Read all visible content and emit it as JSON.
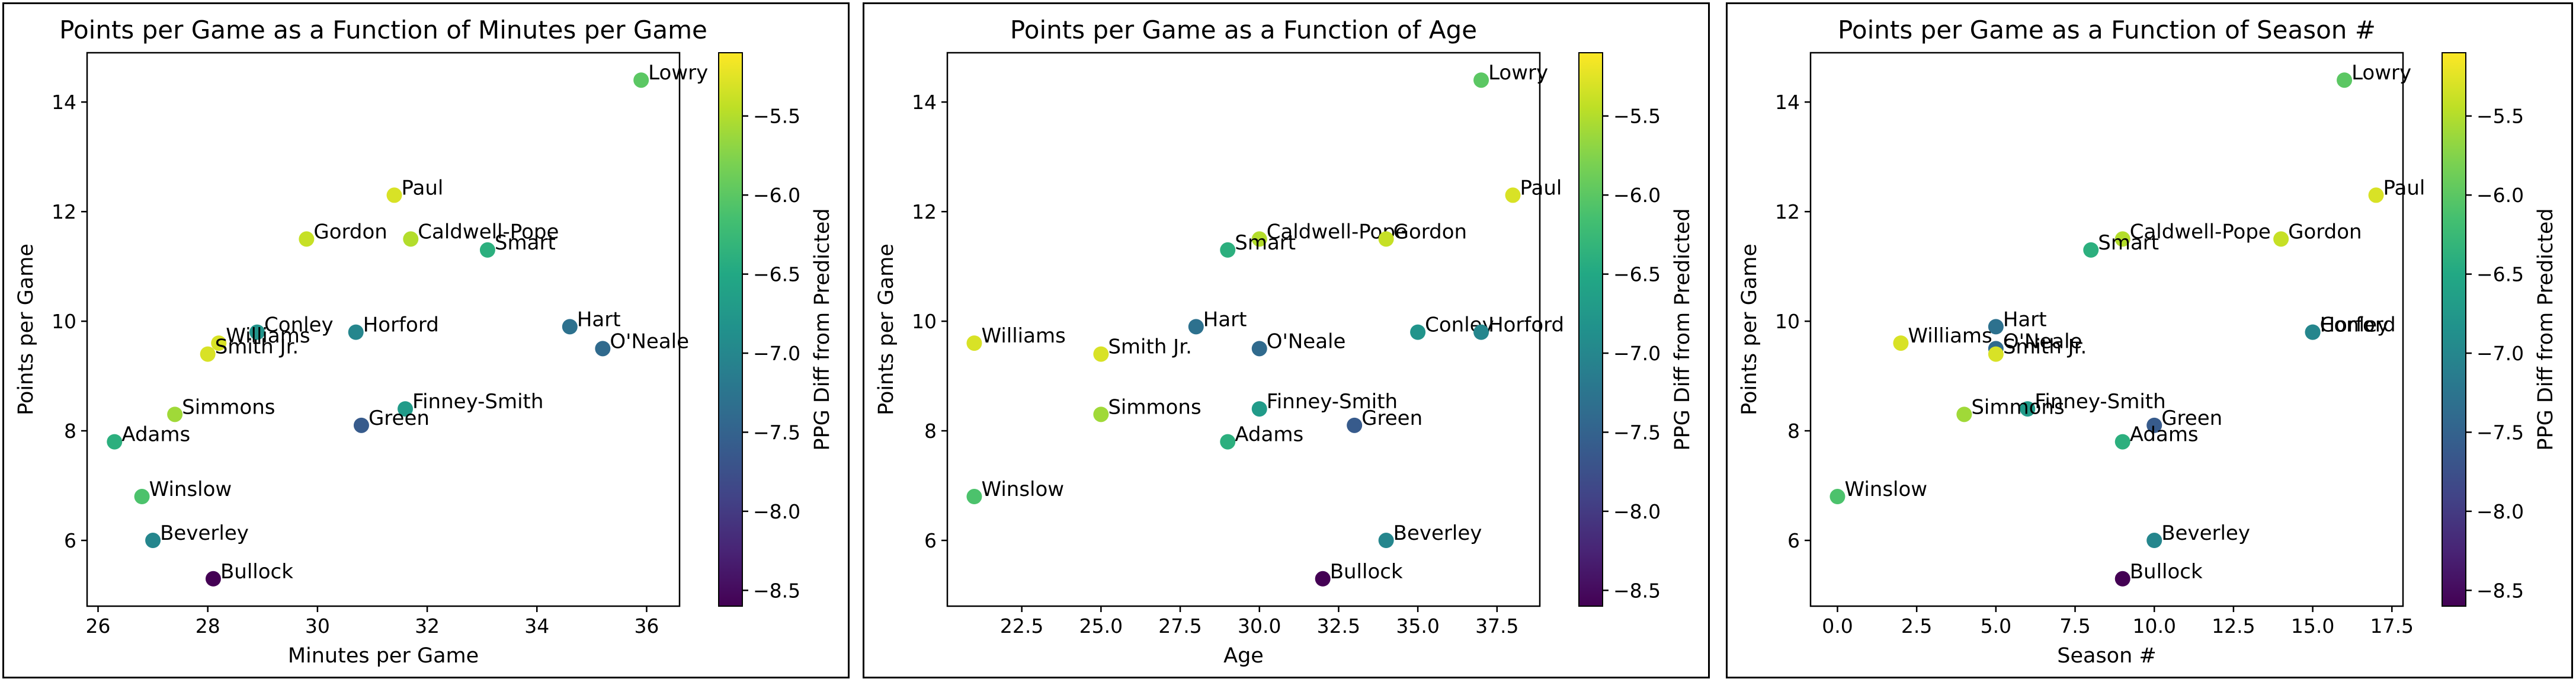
{
  "colormap": {
    "name": "viridis",
    "label": "PPG Diff from Predicted",
    "min": -8.6,
    "max": -5.1,
    "ticks": [
      -8.5,
      -8.0,
      -7.5,
      -7.0,
      -6.5,
      -6.0,
      -5.5
    ],
    "tick_labels": [
      "−8.5",
      "−8.0",
      "−7.5",
      "−7.0",
      "−6.5",
      "−6.0",
      "−5.5"
    ]
  },
  "chart_data": [
    {
      "type": "scatter",
      "title": "Points per Game as a Function of Minutes per Game",
      "xlabel": "Minutes per Game",
      "ylabel": "Points per Game",
      "xlim": [
        25.8,
        36.6
      ],
      "ylim": [
        4.8,
        14.9
      ],
      "xticks": [
        26,
        28,
        30,
        32,
        34,
        36
      ],
      "xtick_labels": [
        "26",
        "28",
        "30",
        "32",
        "34",
        "36"
      ],
      "yticks": [
        6,
        8,
        10,
        12,
        14
      ],
      "ytick_labels": [
        "6",
        "8",
        "10",
        "12",
        "14"
      ],
      "points": [
        {
          "label": "Lowry",
          "x": 35.9,
          "y": 14.4,
          "c": -6.0
        },
        {
          "label": "Paul",
          "x": 31.4,
          "y": 12.3,
          "c": -5.3
        },
        {
          "label": "Gordon",
          "x": 29.8,
          "y": 11.5,
          "c": -5.4
        },
        {
          "label": "Caldwell-Pope",
          "x": 31.7,
          "y": 11.5,
          "c": -5.5
        },
        {
          "label": "Smart",
          "x": 33.1,
          "y": 11.3,
          "c": -6.4
        },
        {
          "label": "Hart",
          "x": 34.6,
          "y": 9.9,
          "c": -7.3
        },
        {
          "label": "O'Neale",
          "x": 35.2,
          "y": 9.5,
          "c": -7.4
        },
        {
          "label": "Conley",
          "x": 28.9,
          "y": 9.8,
          "c": -6.8
        },
        {
          "label": "Horford",
          "x": 30.7,
          "y": 9.8,
          "c": -7.0
        },
        {
          "label": "Williams",
          "x": 28.2,
          "y": 9.6,
          "c": -5.3
        },
        {
          "label": "Smith Jr.",
          "x": 28.0,
          "y": 9.4,
          "c": -5.3
        },
        {
          "label": "Finney-Smith",
          "x": 31.6,
          "y": 8.4,
          "c": -6.7
        },
        {
          "label": "Simmons",
          "x": 27.4,
          "y": 8.3,
          "c": -5.6
        },
        {
          "label": "Green",
          "x": 30.8,
          "y": 8.1,
          "c": -7.6
        },
        {
          "label": "Adams",
          "x": 26.3,
          "y": 7.8,
          "c": -6.4
        },
        {
          "label": "Winslow",
          "x": 26.8,
          "y": 6.8,
          "c": -6.1
        },
        {
          "label": "Beverley",
          "x": 27.0,
          "y": 6.0,
          "c": -7.0
        },
        {
          "label": "Bullock",
          "x": 28.1,
          "y": 5.3,
          "c": -8.6
        }
      ]
    },
    {
      "type": "scatter",
      "title": "Points per Game as a Function of Age",
      "xlabel": "Age",
      "ylabel": "Points per Game",
      "xlim": [
        20.15,
        38.85
      ],
      "ylim": [
        4.8,
        14.9
      ],
      "xticks": [
        22.5,
        25.0,
        27.5,
        30.0,
        32.5,
        35.0,
        37.5
      ],
      "xtick_labels": [
        "22.5",
        "25.0",
        "27.5",
        "30.0",
        "32.5",
        "35.0",
        "37.5"
      ],
      "yticks": [
        6,
        8,
        10,
        12,
        14
      ],
      "ytick_labels": [
        "6",
        "8",
        "10",
        "12",
        "14"
      ],
      "points": [
        {
          "label": "Lowry",
          "x": 37,
          "y": 14.4,
          "c": -6.0
        },
        {
          "label": "Paul",
          "x": 38,
          "y": 12.3,
          "c": -5.3
        },
        {
          "label": "Caldwell-Pope",
          "x": 30,
          "y": 11.5,
          "c": -5.5
        },
        {
          "label": "Gordon",
          "x": 34,
          "y": 11.5,
          "c": -5.4
        },
        {
          "label": "Smart",
          "x": 29,
          "y": 11.3,
          "c": -6.4
        },
        {
          "label": "Williams",
          "x": 21,
          "y": 9.6,
          "c": -5.3
        },
        {
          "label": "Hart",
          "x": 28,
          "y": 9.9,
          "c": -7.3
        },
        {
          "label": "Smith Jr.",
          "x": 25,
          "y": 9.4,
          "c": -5.3
        },
        {
          "label": "O'Neale",
          "x": 30,
          "y": 9.5,
          "c": -7.4
        },
        {
          "label": "Conley",
          "x": 35,
          "y": 9.8,
          "c": -6.8
        },
        {
          "label": "Horford",
          "x": 37,
          "y": 9.8,
          "c": -7.0
        },
        {
          "label": "Finney-Smith",
          "x": 30,
          "y": 8.4,
          "c": -6.7
        },
        {
          "label": "Simmons",
          "x": 25,
          "y": 8.3,
          "c": -5.6
        },
        {
          "label": "Green",
          "x": 33,
          "y": 8.1,
          "c": -7.6
        },
        {
          "label": "Adams",
          "x": 29,
          "y": 7.8,
          "c": -6.4
        },
        {
          "label": "Winslow",
          "x": 21,
          "y": 6.8,
          "c": -6.1
        },
        {
          "label": "Beverley",
          "x": 34,
          "y": 6.0,
          "c": -7.0
        },
        {
          "label": "Bullock",
          "x": 32,
          "y": 5.3,
          "c": -8.6
        }
      ]
    },
    {
      "type": "scatter",
      "title": "Points per Game as a Function of Season #",
      "xlabel": "Season #",
      "ylabel": "Points per Game",
      "xlim": [
        -0.85,
        17.85
      ],
      "ylim": [
        4.8,
        14.9
      ],
      "xticks": [
        0.0,
        2.5,
        5.0,
        7.5,
        10.0,
        12.5,
        15.0,
        17.5
      ],
      "xtick_labels": [
        "0.0",
        "2.5",
        "5.0",
        "7.5",
        "10.0",
        "12.5",
        "15.0",
        "17.5"
      ],
      "yticks": [
        6,
        8,
        10,
        12,
        14
      ],
      "ytick_labels": [
        "6",
        "8",
        "10",
        "12",
        "14"
      ],
      "points": [
        {
          "label": "Lowry",
          "x": 16,
          "y": 14.4,
          "c": -6.0
        },
        {
          "label": "Paul",
          "x": 17,
          "y": 12.3,
          "c": -5.3
        },
        {
          "label": "Caldwell-Pope",
          "x": 9,
          "y": 11.5,
          "c": -5.5
        },
        {
          "label": "Gordon",
          "x": 14,
          "y": 11.5,
          "c": -5.4
        },
        {
          "label": "Smart",
          "x": 8,
          "y": 11.3,
          "c": -6.4
        },
        {
          "label": "Hart",
          "x": 5,
          "y": 9.9,
          "c": -7.3
        },
        {
          "label": "Williams",
          "x": 2,
          "y": 9.6,
          "c": -5.3
        },
        {
          "label": "O'Neale",
          "x": 5,
          "y": 9.5,
          "c": -7.4
        },
        {
          "label": "Smith Jr.",
          "x": 5,
          "y": 9.4,
          "c": -5.3
        },
        {
          "label": "Conley",
          "x": 15,
          "y": 9.8,
          "c": -6.8
        },
        {
          "label": "Horford",
          "x": 15,
          "y": 9.8,
          "c": -7.0
        },
        {
          "label": "Finney-Smith",
          "x": 6,
          "y": 8.4,
          "c": -6.7
        },
        {
          "label": "Simmons",
          "x": 4,
          "y": 8.3,
          "c": -5.6
        },
        {
          "label": "Green",
          "x": 10,
          "y": 8.1,
          "c": -7.6
        },
        {
          "label": "Adams",
          "x": 9,
          "y": 7.8,
          "c": -6.4
        },
        {
          "label": "Winslow",
          "x": 0,
          "y": 6.8,
          "c": -6.1
        },
        {
          "label": "Beverley",
          "x": 10,
          "y": 6.0,
          "c": -7.0
        },
        {
          "label": "Bullock",
          "x": 9,
          "y": 5.3,
          "c": -8.6
        }
      ]
    }
  ]
}
